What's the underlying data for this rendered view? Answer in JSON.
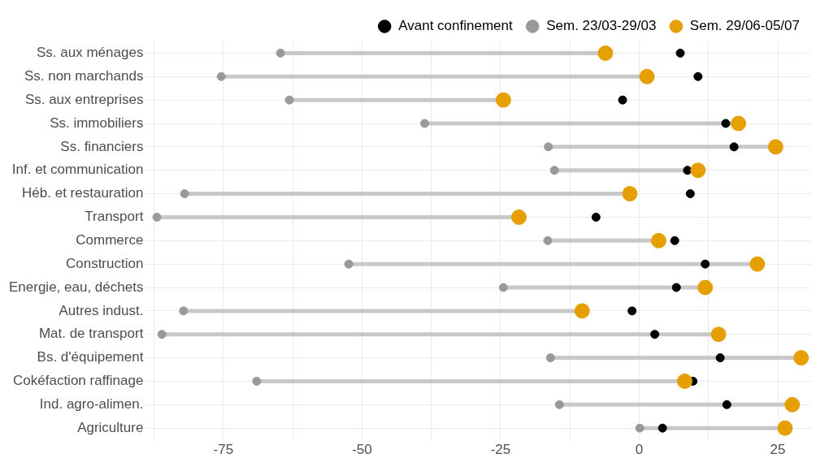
{
  "chart_data": {
    "type": "scatter",
    "orientation": "horizontal",
    "categories": [
      "Ss. aux ménages",
      "Ss. non marchands",
      "Ss. aux entreprises",
      "Ss. immobiliers",
      "Ss. financiers",
      "Inf. et communication",
      "Héb. et restauration",
      "Transport",
      "Commerce",
      "Construction",
      "Energie, eau, déchets",
      "Autres indust.",
      "Mat. de transport",
      "Bs. d'équipement",
      "Cokéfaction raffinage",
      "Ind. agro-alimen.",
      "Agriculture"
    ],
    "series": [
      {
        "name": "Avant confinement",
        "color": "#000000",
        "values": [
          7.4,
          10.6,
          -3.0,
          15.6,
          17.1,
          8.7,
          9.2,
          -7.8,
          6.4,
          11.9,
          6.7,
          -1.3,
          2.8,
          14.6,
          9.7,
          15.8,
          4.2
        ]
      },
      {
        "name": "Sem. 23/03-29/03",
        "color": "#999999",
        "values": [
          -64.7,
          -75.4,
          -63.1,
          -38.7,
          -16.4,
          -15.3,
          -82.0,
          -87.0,
          -16.5,
          -52.4,
          -24.5,
          -82.2,
          -86.1,
          -16.0,
          -69.0,
          -14.4,
          0.1
        ]
      },
      {
        "name": "Sem. 29/06-05/07",
        "color": "#e69f00",
        "values": [
          -6.1,
          1.4,
          -24.5,
          17.9,
          24.6,
          10.6,
          -1.7,
          -21.7,
          3.5,
          21.3,
          11.9,
          -10.3,
          14.3,
          29.2,
          8.2,
          27.6,
          26.3
        ]
      }
    ],
    "xlim": [
      -89,
      31
    ],
    "xticks": [
      {
        "value": -87.5,
        "label": null
      },
      -75,
      {
        "value": -62.5,
        "label": null
      },
      -50,
      {
        "value": -37.5,
        "label": null
      },
      -25,
      {
        "value": -12.5,
        "label": null
      },
      0,
      {
        "value": 12.5,
        "label": null
      },
      25
    ],
    "grid": true,
    "legend": "top",
    "marker": "circle"
  }
}
